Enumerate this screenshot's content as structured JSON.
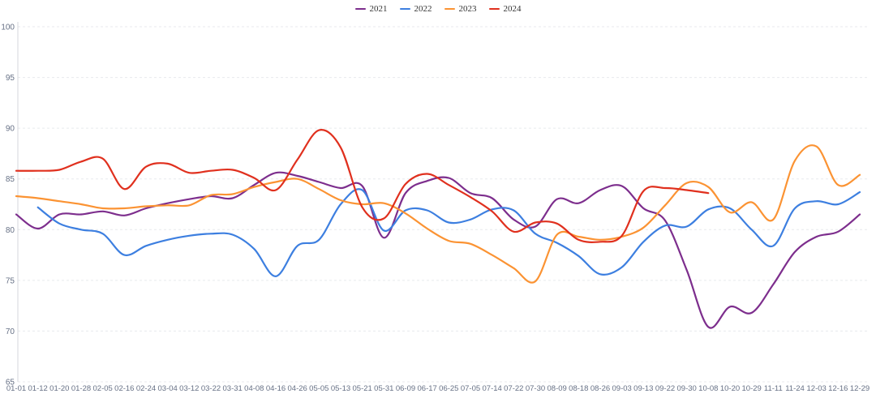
{
  "chart_data": {
    "type": "line",
    "title": "",
    "x_labels": [
      "01-01",
      "01-12",
      "01-20",
      "01-28",
      "02-05",
      "02-16",
      "02-24",
      "03-04",
      "03-12",
      "03-22",
      "03-31",
      "04-08",
      "04-16",
      "04-26",
      "05-05",
      "05-13",
      "05-21",
      "05-31",
      "06-09",
      "06-17",
      "06-25",
      "07-05",
      "07-14",
      "07-22",
      "07-30",
      "08-09",
      "08-18",
      "08-26",
      "09-03",
      "09-13",
      "09-22",
      "09-30",
      "10-08",
      "10-20",
      "10-29",
      "11-11",
      "11-24",
      "12-03",
      "12-16",
      "12-29"
    ],
    "ylim": [
      65,
      100
    ],
    "y_ticks": [
      100,
      95,
      90,
      85,
      80,
      75,
      70,
      65
    ],
    "grid": "horizontal-dashed",
    "legend_position": "top-center",
    "series": [
      {
        "name": "2021",
        "color": "#7d2e8d",
        "values": [
          81.5,
          80.1,
          81.5,
          81.5,
          81.8,
          81.4,
          82.1,
          82.6,
          83.0,
          83.3,
          83.1,
          84.4,
          85.6,
          85.3,
          84.7,
          84.1,
          84.3,
          79.2,
          83.6,
          84.8,
          85.1,
          83.6,
          83.1,
          81.0,
          80.3,
          83.0,
          82.6,
          83.9,
          84.3,
          82.1,
          80.9,
          76.0,
          70.4,
          72.4,
          71.8,
          74.6,
          77.8,
          79.3,
          79.8,
          81.5
        ]
      },
      {
        "name": "2022",
        "color": "#3d7fe0",
        "values": [
          null,
          82.2,
          80.6,
          80.0,
          79.6,
          77.5,
          78.4,
          79.0,
          79.4,
          79.6,
          79.5,
          78.1,
          75.4,
          78.4,
          79.0,
          82.5,
          83.9,
          79.9,
          81.9,
          81.9,
          80.7,
          81.0,
          82.0,
          81.9,
          79.6,
          78.7,
          77.4,
          75.6,
          76.3,
          78.8,
          80.4,
          80.3,
          82.0,
          82.1,
          80.0,
          78.4,
          82.1,
          82.8,
          82.5,
          83.7
        ]
      },
      {
        "name": "2023",
        "color": "#fb9333",
        "values": [
          83.3,
          83.1,
          82.8,
          82.5,
          82.1,
          82.1,
          82.3,
          82.4,
          82.4,
          83.4,
          83.5,
          84.2,
          84.7,
          85.0,
          84.0,
          82.9,
          82.5,
          82.6,
          81.6,
          80.1,
          78.9,
          78.6,
          77.5,
          76.2,
          74.9,
          79.5,
          79.3,
          79.0,
          79.3,
          80.2,
          82.4,
          84.6,
          84.2,
          81.7,
          82.7,
          81.0,
          86.8,
          88.2,
          84.4,
          85.4
        ]
      },
      {
        "name": "2024",
        "color": "#e0301e",
        "values": [
          85.8,
          85.8,
          85.9,
          86.7,
          87.0,
          84.0,
          86.2,
          86.5,
          85.6,
          85.8,
          85.9,
          85.1,
          83.9,
          86.9,
          89.8,
          88.1,
          82.2,
          81.1,
          84.5,
          85.5,
          84.4,
          83.2,
          81.8,
          79.8,
          80.7,
          80.6,
          79.0,
          78.8,
          79.4,
          83.8,
          84.1,
          83.9,
          83.6,
          null,
          null,
          null,
          null,
          null,
          null,
          null
        ]
      }
    ],
    "style": {
      "axis_label_color": "#667085",
      "axis_line_color": "#d4d7dc",
      "grid_color": "#e8eaed",
      "legend_text_color": "#333333"
    }
  }
}
